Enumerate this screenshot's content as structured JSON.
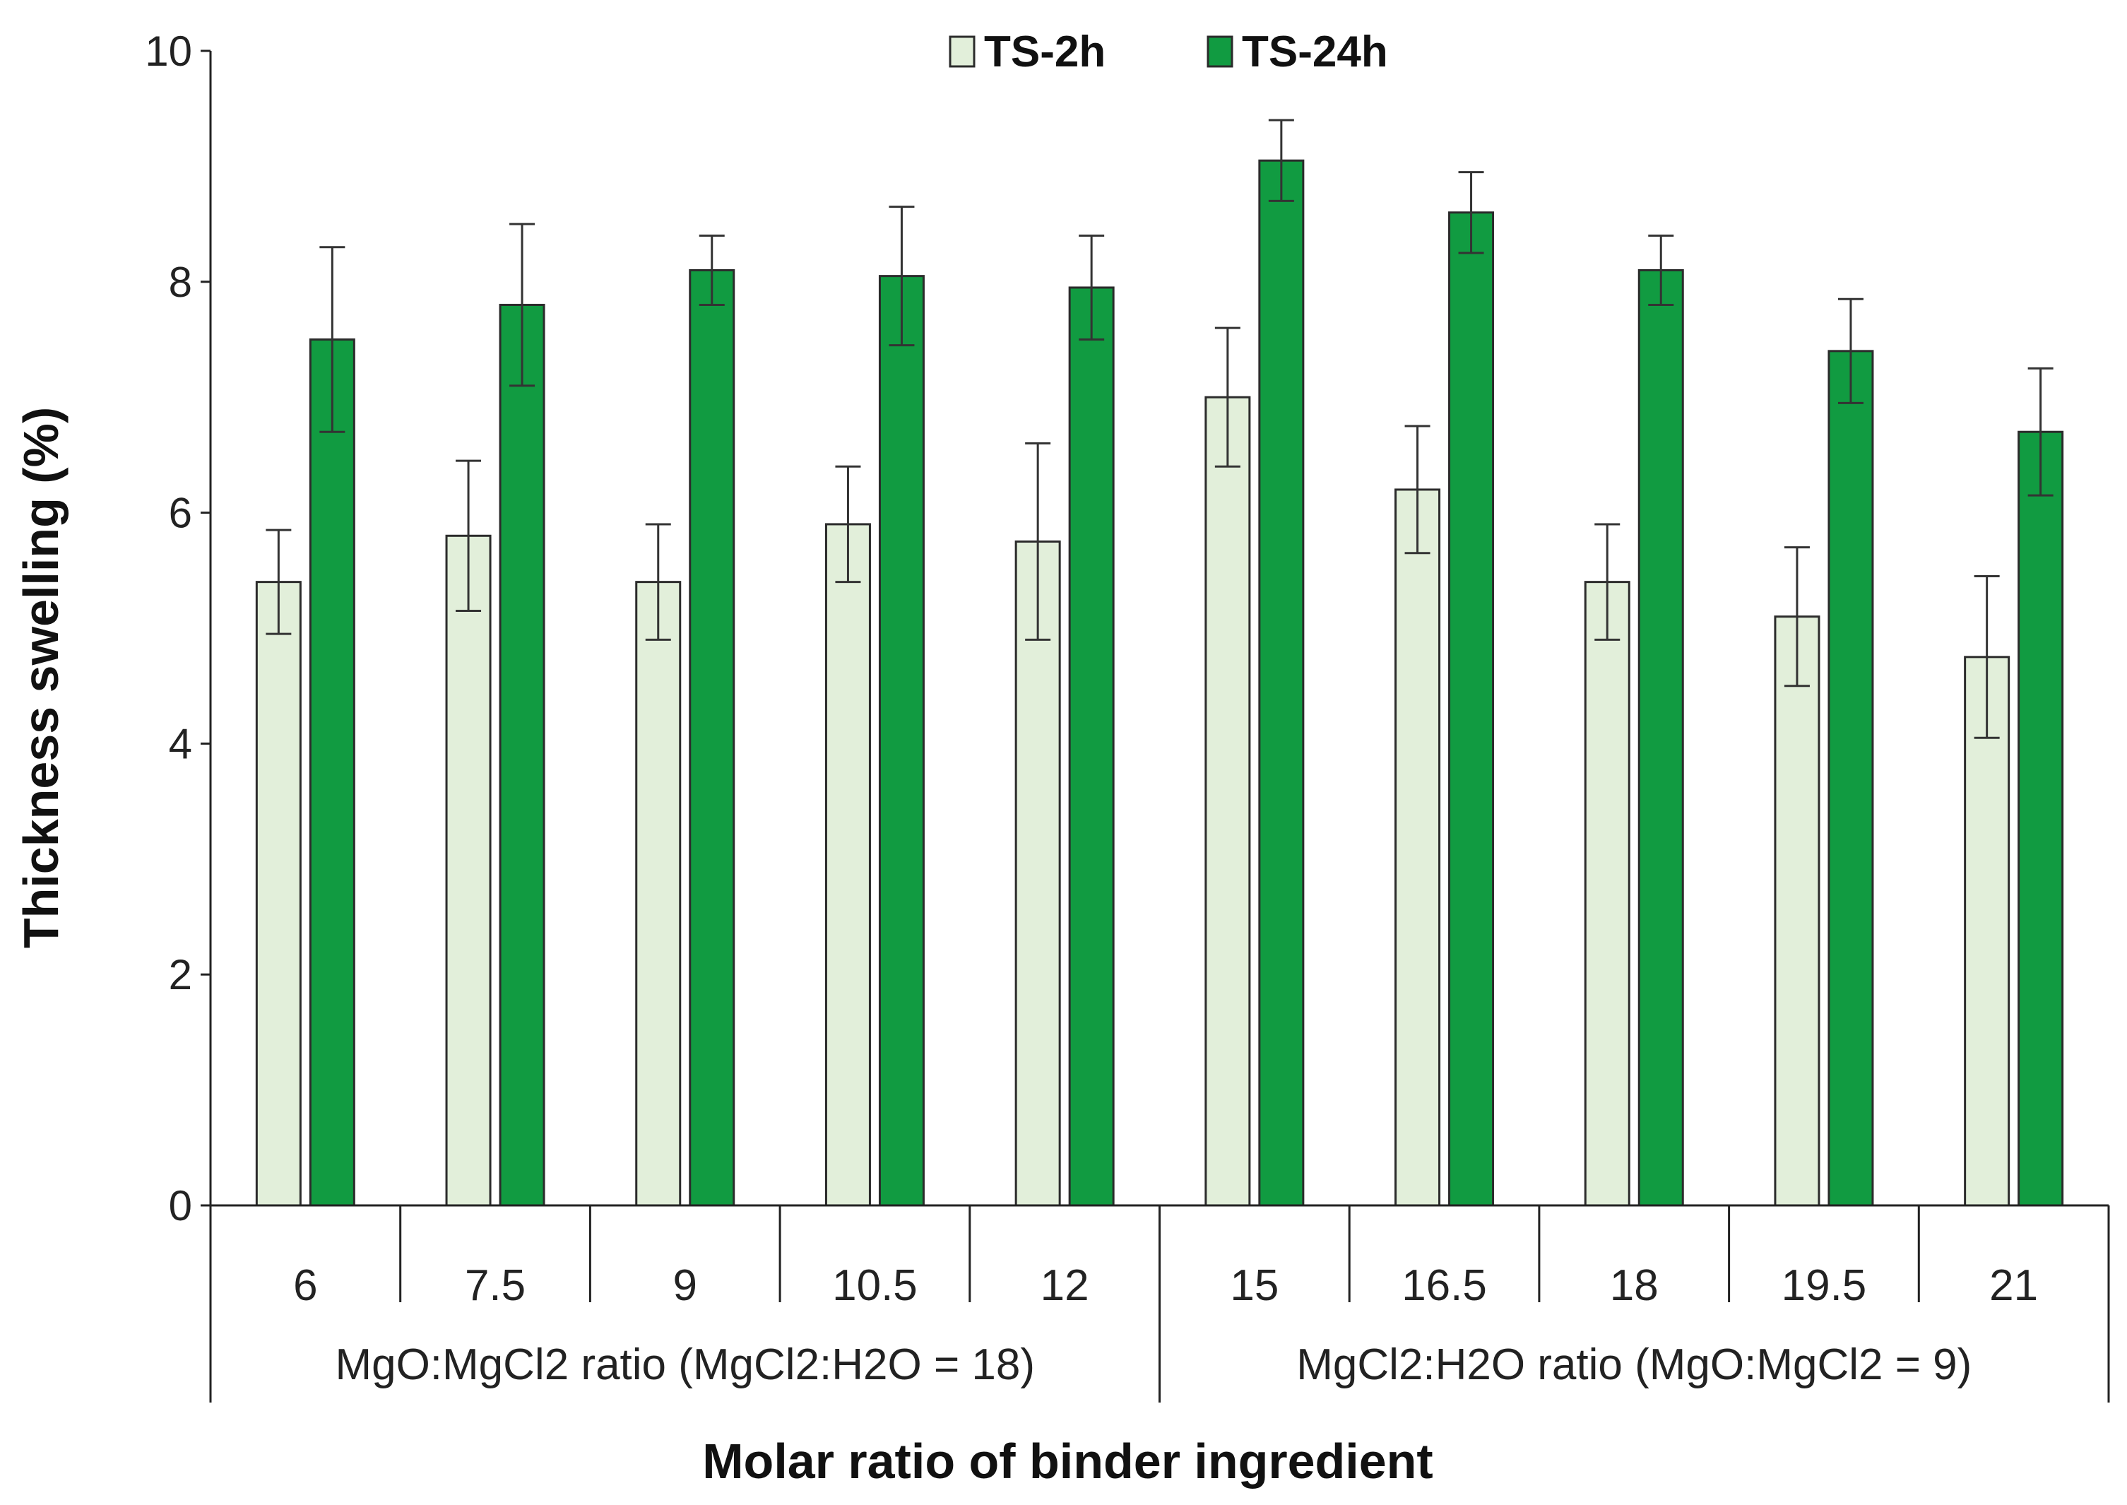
{
  "chart_data": {
    "type": "bar",
    "title": "",
    "xlabel": "Molar ratio of binder ingredient",
    "ylabel": "Thickness swelling (%)",
    "ylim": [
      0,
      10
    ],
    "yticks": [
      "0",
      "2",
      "4",
      "6",
      "8",
      "10"
    ],
    "categories": [
      "6",
      "7.5",
      "9",
      "10.5",
      "12",
      "15",
      "16.5",
      "18",
      "19.5",
      "21"
    ],
    "groups": [
      {
        "label": "MgO:MgCl2 ratio (MgCl2:H2O = 18)",
        "count": 5
      },
      {
        "label": "MgCl2:H2O ratio (MgO:MgCl2 = 9)",
        "count": 5
      }
    ],
    "series": [
      {
        "name": "TS-2h",
        "color": "#e2efda",
        "values": [
          5.4,
          5.8,
          5.4,
          5.9,
          5.75,
          7.0,
          6.2,
          5.4,
          5.1,
          4.75
        ],
        "errors": [
          0.45,
          0.65,
          0.5,
          0.5,
          0.85,
          0.6,
          0.55,
          0.5,
          0.6,
          0.7
        ]
      },
      {
        "name": "TS-24h",
        "color": "#119b41",
        "values": [
          7.5,
          7.8,
          8.1,
          8.05,
          7.95,
          9.05,
          8.6,
          8.1,
          7.4,
          6.7
        ],
        "errors": [
          0.8,
          0.7,
          0.3,
          0.6,
          0.45,
          0.35,
          0.35,
          0.3,
          0.45,
          0.55
        ]
      }
    ],
    "legend_position": "top-center",
    "grid": false
  }
}
